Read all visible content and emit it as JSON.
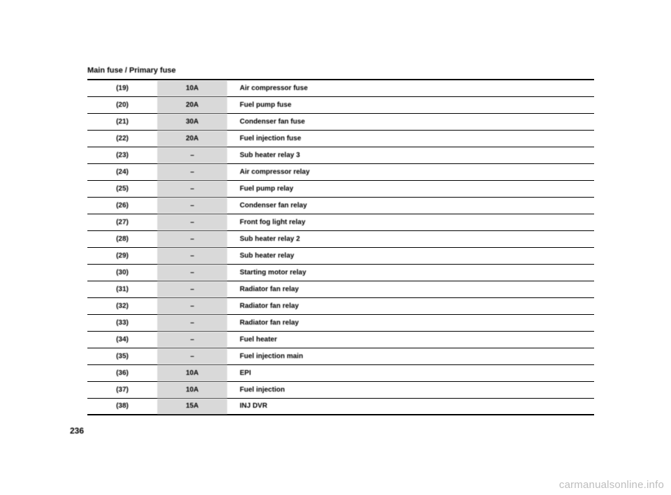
{
  "title": "Main fuse / Primary fuse",
  "page_number": "236",
  "watermark": "carmanualsonline.info",
  "rows": [
    {
      "num": "(19)",
      "rating": "10A",
      "desc": "Air compressor fuse"
    },
    {
      "num": "(20)",
      "rating": "20A",
      "desc": "Fuel pump fuse"
    },
    {
      "num": "(21)",
      "rating": "30A",
      "desc": "Condenser fan fuse"
    },
    {
      "num": "(22)",
      "rating": "20A",
      "desc": "Fuel injection fuse"
    },
    {
      "num": "(23)",
      "rating": "–",
      "desc": "Sub heater relay 3"
    },
    {
      "num": "(24)",
      "rating": "–",
      "desc": "Air compressor relay"
    },
    {
      "num": "(25)",
      "rating": "–",
      "desc": "Fuel pump relay"
    },
    {
      "num": "(26)",
      "rating": "–",
      "desc": "Condenser fan relay"
    },
    {
      "num": "(27)",
      "rating": "–",
      "desc": "Front fog light relay"
    },
    {
      "num": "(28)",
      "rating": "–",
      "desc": "Sub heater relay 2"
    },
    {
      "num": "(29)",
      "rating": "–",
      "desc": "Sub heater relay"
    },
    {
      "num": "(30)",
      "rating": "–",
      "desc": "Starting motor relay"
    },
    {
      "num": "(31)",
      "rating": "–",
      "desc": "Radiator fan relay"
    },
    {
      "num": "(32)",
      "rating": "–",
      "desc": "Radiator fan relay"
    },
    {
      "num": "(33)",
      "rating": "–",
      "desc": "Radiator fan relay"
    },
    {
      "num": "(34)",
      "rating": "–",
      "desc": "Fuel heater"
    },
    {
      "num": "(35)",
      "rating": "–",
      "desc": "Fuel injection main"
    },
    {
      "num": "(36)",
      "rating": "10A",
      "desc": "EPI"
    },
    {
      "num": "(37)",
      "rating": "10A",
      "desc": "Fuel injection"
    },
    {
      "num": "(38)",
      "rating": "15A",
      "desc": "INJ DVR"
    }
  ]
}
